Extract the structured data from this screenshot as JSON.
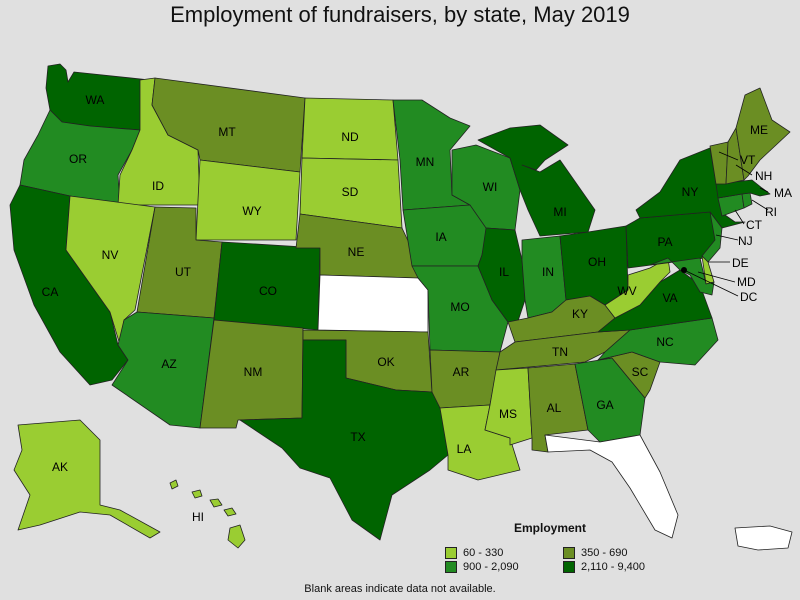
{
  "title": "Employment of fundraisers, by state, May 2019",
  "legend": {
    "title": "Employment",
    "items": [
      {
        "label": "60 - 330",
        "color": "#9acd32"
      },
      {
        "label": "350 - 690",
        "color": "#6b8e23"
      },
      {
        "label": "900 - 2,090",
        "color": "#228b22"
      },
      {
        "label": "2,110 - 9,400",
        "color": "#006400"
      }
    ]
  },
  "note": "Blank areas indicate data not available.",
  "colors": {
    "c1": "#9acd32",
    "c2": "#6b8e23",
    "c3": "#228b22",
    "c4": "#006400",
    "na": "#ffffff",
    "background": "#e0e0e0"
  },
  "states": {
    "WA": {
      "label": "WA",
      "category": "2,110 - 9,400"
    },
    "OR": {
      "label": "OR",
      "category": "900 - 2,090"
    },
    "CA": {
      "label": "CA",
      "category": "2,110 - 9,400"
    },
    "ID": {
      "label": "ID",
      "category": "60 - 330"
    },
    "NV": {
      "label": "NV",
      "category": "60 - 330"
    },
    "MT": {
      "label": "MT",
      "category": "350 - 690"
    },
    "WY": {
      "label": "WY",
      "category": "60 - 330"
    },
    "UT": {
      "label": "UT",
      "category": "350 - 690"
    },
    "AZ": {
      "label": "AZ",
      "category": "900 - 2,090"
    },
    "CO": {
      "label": "CO",
      "category": "2,110 - 9,400"
    },
    "NM": {
      "label": "NM",
      "category": "350 - 690"
    },
    "ND": {
      "label": "ND",
      "category": "60 - 330"
    },
    "SD": {
      "label": "SD",
      "category": "60 - 330"
    },
    "NE": {
      "label": "NE",
      "category": "350 - 690"
    },
    "KS": {
      "label": "",
      "category": "not available"
    },
    "OK": {
      "label": "OK",
      "category": "350 - 690"
    },
    "TX": {
      "label": "TX",
      "category": "2,110 - 9,400"
    },
    "MN": {
      "label": "MN",
      "category": "900 - 2,090"
    },
    "IA": {
      "label": "IA",
      "category": "900 - 2,090"
    },
    "MO": {
      "label": "MO",
      "category": "900 - 2,090"
    },
    "AR": {
      "label": "AR",
      "category": "350 - 690"
    },
    "LA": {
      "label": "LA",
      "category": "60 - 330"
    },
    "WI": {
      "label": "WI",
      "category": "900 - 2,090"
    },
    "IL": {
      "label": "IL",
      "category": "2,110 - 9,400"
    },
    "MI": {
      "label": "MI",
      "category": "2,110 - 9,400"
    },
    "IN": {
      "label": "IN",
      "category": "900 - 2,090"
    },
    "OH": {
      "label": "OH",
      "category": "2,110 - 9,400"
    },
    "KY": {
      "label": "KY",
      "category": "350 - 690"
    },
    "TN": {
      "label": "TN",
      "category": "350 - 690"
    },
    "MS": {
      "label": "MS",
      "category": "60 - 330"
    },
    "AL": {
      "label": "AL",
      "category": "350 - 690"
    },
    "GA": {
      "label": "GA",
      "category": "900 - 2,090"
    },
    "FL": {
      "label": "",
      "category": "not available"
    },
    "SC": {
      "label": "SC",
      "category": "350 - 690"
    },
    "NC": {
      "label": "NC",
      "category": "900 - 2,090"
    },
    "VA": {
      "label": "VA",
      "category": "2,110 - 9,400"
    },
    "WV": {
      "label": "WV",
      "category": "60 - 330"
    },
    "PA": {
      "label": "PA",
      "category": "2,110 - 9,400"
    },
    "NY": {
      "label": "NY",
      "category": "2,110 - 9,400"
    },
    "NJ": {
      "label": "NJ",
      "category": "900 - 2,090"
    },
    "DE": {
      "label": "DE",
      "category": "60 - 330"
    },
    "MD": {
      "label": "MD",
      "category": "900 - 2,090"
    },
    "DC": {
      "label": "DC",
      "category": "2,110 - 9,400"
    },
    "CT": {
      "label": "CT",
      "category": "900 - 2,090"
    },
    "RI": {
      "label": "RI",
      "category": "900 - 2,090"
    },
    "MA": {
      "label": "MA",
      "category": "2,110 - 9,400"
    },
    "VT": {
      "label": "VT",
      "category": "350 - 690"
    },
    "NH": {
      "label": "NH",
      "category": "350 - 690"
    },
    "ME": {
      "label": "ME",
      "category": "350 - 690"
    },
    "AK": {
      "label": "AK",
      "category": "60 - 330"
    },
    "HI": {
      "label": "HI",
      "category": "60 - 330"
    },
    "PR": {
      "label": "",
      "category": "not available"
    }
  }
}
